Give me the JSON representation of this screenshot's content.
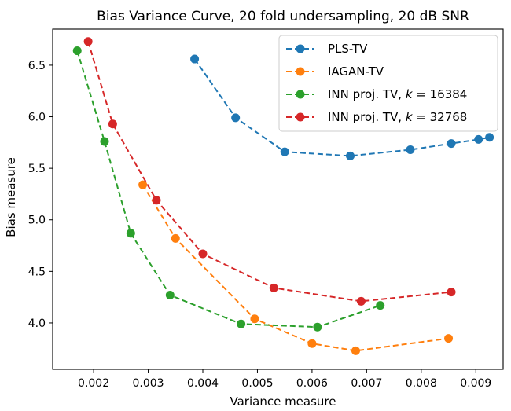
{
  "chart_data": {
    "type": "line",
    "title": "Bias Variance Curve, 20 fold undersampling, 20 dB SNR",
    "xlabel": "Variance measure",
    "ylabel": "Bias measure",
    "xlim": [
      0.00125,
      0.0095
    ],
    "ylim": [
      3.55,
      6.85
    ],
    "xticks": [
      0.002,
      0.003,
      0.004,
      0.005,
      0.006,
      0.007,
      0.008,
      0.009
    ],
    "xtick_labels": [
      "0.002",
      "0.003",
      "0.004",
      "0.005",
      "0.006",
      "0.007",
      "0.008",
      "0.009"
    ],
    "yticks": [
      4.0,
      4.5,
      5.0,
      5.5,
      6.0,
      6.5
    ],
    "ytick_labels": [
      "4.0",
      "4.5",
      "5.0",
      "5.5",
      "6.0",
      "6.5"
    ],
    "grid": false,
    "legend_position": "top-right",
    "series": [
      {
        "name": "PLS-TV",
        "color": "#1f77b4",
        "x": [
          0.00385,
          0.0046,
          0.0055,
          0.0067,
          0.0078,
          0.00855,
          0.00905,
          0.00925
        ],
        "y": [
          6.56,
          5.99,
          5.66,
          5.62,
          5.68,
          5.74,
          5.78,
          5.8
        ]
      },
      {
        "name": "IAGAN-TV",
        "color": "#ff7f0e",
        "x": [
          0.0029,
          0.0035,
          0.00495,
          0.006,
          0.0068,
          0.0085
        ],
        "y": [
          5.34,
          4.82,
          4.04,
          3.8,
          3.73,
          3.85
        ]
      },
      {
        "name": "INN proj. TV, k = 16384",
        "name_parts": [
          "INN proj. TV, ",
          "k",
          " = 16384"
        ],
        "color": "#2ca02c",
        "x": [
          0.0017,
          0.0022,
          0.00268,
          0.0034,
          0.0047,
          0.0061,
          0.00725
        ],
        "y": [
          6.64,
          5.76,
          4.87,
          4.27,
          3.99,
          3.96,
          4.17
        ]
      },
      {
        "name": "INN proj. TV, k = 32768",
        "name_parts": [
          "INN proj. TV, ",
          "k",
          " = 32768"
        ],
        "color": "#d62728",
        "x": [
          0.0019,
          0.00235,
          0.00315,
          0.004,
          0.0053,
          0.0069,
          0.00855
        ],
        "y": [
          6.73,
          5.93,
          5.19,
          4.67,
          4.34,
          4.21,
          4.3
        ]
      }
    ]
  }
}
